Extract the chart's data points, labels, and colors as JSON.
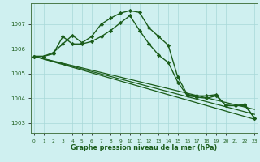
{
  "title": "Graphe pression niveau de la mer (hPa)",
  "background_color": "#cff0f0",
  "grid_color": "#a8d8d8",
  "line_color": "#1a5c1a",
  "ylim": [
    1002.6,
    1007.85
  ],
  "yticks": [
    1003,
    1004,
    1005,
    1006,
    1007
  ],
  "xlim": [
    -0.3,
    23.3
  ],
  "xticks": [
    0,
    1,
    2,
    3,
    4,
    5,
    6,
    7,
    8,
    9,
    10,
    11,
    12,
    13,
    14,
    15,
    16,
    17,
    18,
    19,
    20,
    21,
    22,
    23
  ],
  "xtick_labels": [
    "0",
    "1",
    "2",
    "3",
    "4",
    "5",
    "6",
    "7",
    "8",
    "9",
    "10",
    "11",
    "12",
    "13",
    "14",
    "15",
    "16",
    "17",
    "18",
    "19",
    "20",
    "21",
    "22",
    "23"
  ],
  "series": [
    {
      "x": [
        0,
        1,
        2,
        3,
        4,
        5,
        6,
        7,
        8,
        9,
        10,
        11,
        12,
        13,
        14,
        15,
        16,
        17,
        18,
        19,
        20,
        21,
        22,
        23
      ],
      "y": [
        1005.7,
        1005.7,
        1005.85,
        1006.2,
        1006.55,
        1006.25,
        1006.5,
        1007.0,
        1007.25,
        1007.45,
        1007.55,
        1007.48,
        1006.85,
        1006.5,
        1006.15,
        1004.85,
        1004.15,
        1004.1,
        1004.1,
        1004.15,
        1003.7,
        1003.7,
        1003.7,
        1003.2
      ],
      "marker": "D",
      "markersize": 2.2,
      "linewidth": 1.0
    },
    {
      "x": [
        0,
        1,
        2,
        3,
        4,
        5,
        6,
        7,
        8,
        9,
        10,
        11,
        12,
        13,
        14,
        15,
        16,
        17,
        18,
        19,
        20,
        21,
        22,
        23
      ],
      "y": [
        1005.7,
        1005.7,
        1005.8,
        1006.5,
        1006.2,
        1006.2,
        1006.3,
        1006.5,
        1006.75,
        1007.05,
        1007.35,
        1006.75,
        1006.2,
        1005.75,
        1005.45,
        1004.65,
        1004.1,
        1004.05,
        1004.0,
        1004.1,
        1003.72,
        1003.7,
        1003.75,
        1003.2
      ],
      "marker": "D",
      "markersize": 2.2,
      "linewidth": 1.0
    },
    {
      "x": [
        0,
        23
      ],
      "y": [
        1005.7,
        1003.15
      ],
      "marker": null,
      "markersize": 0,
      "linewidth": 0.9
    },
    {
      "x": [
        0,
        23
      ],
      "y": [
        1005.7,
        1003.35
      ],
      "marker": null,
      "markersize": 0,
      "linewidth": 0.9
    },
    {
      "x": [
        0,
        23
      ],
      "y": [
        1005.7,
        1003.55
      ],
      "marker": null,
      "markersize": 0,
      "linewidth": 0.9
    }
  ]
}
